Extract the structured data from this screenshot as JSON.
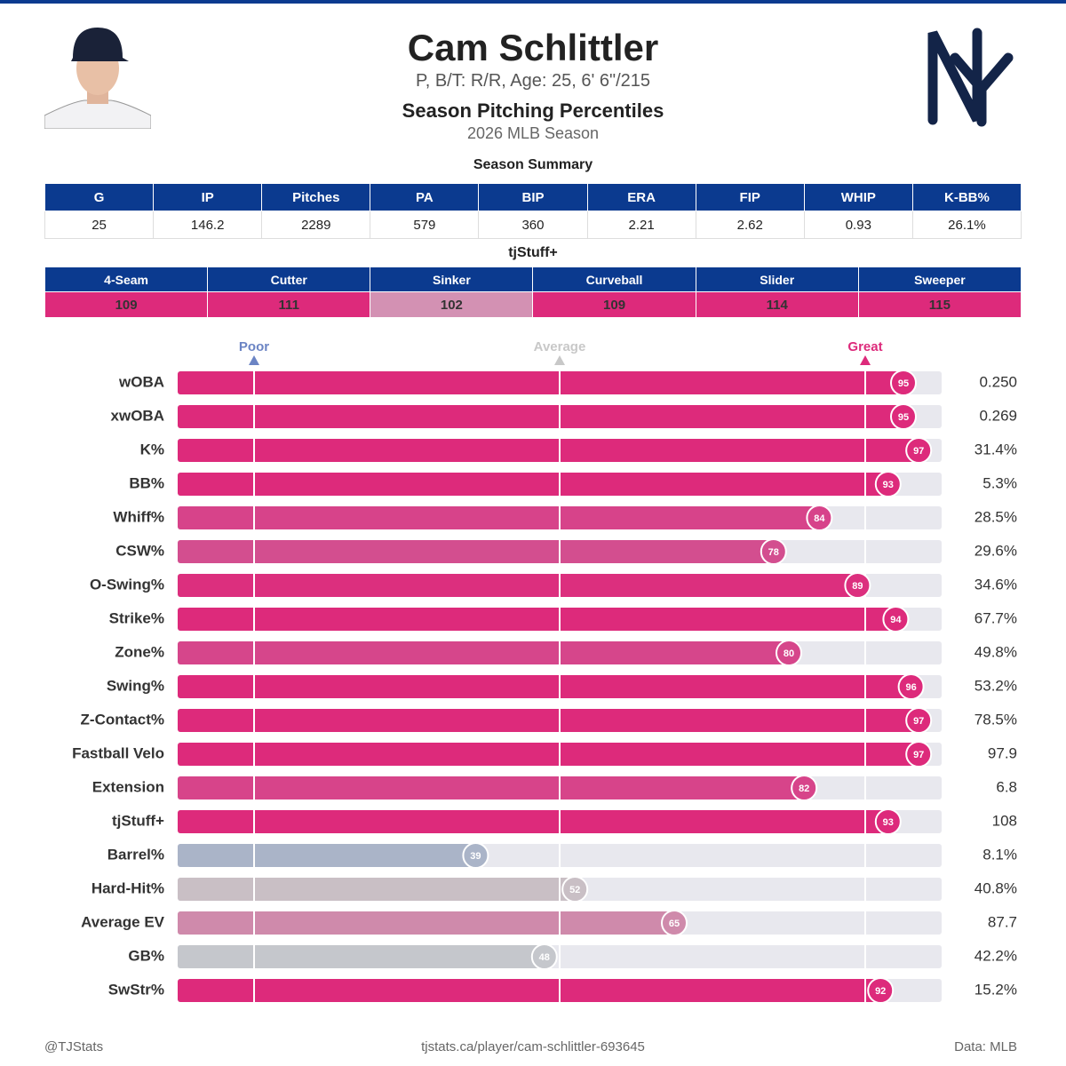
{
  "header": {
    "name": "Cam Schlittler",
    "bio": "P, B/T: R/R, Age: 25, 6' 6\"/215",
    "title": "Season Pitching Percentiles",
    "subtitle": "2026 MLB Season"
  },
  "summary": {
    "title": "Season Summary",
    "columns": [
      "G",
      "IP",
      "Pitches",
      "PA",
      "BIP",
      "ERA",
      "FIP",
      "WHIP",
      "K-BB%"
    ],
    "rows": [
      [
        "25",
        "146.2",
        "2289",
        "579",
        "360",
        "2.21",
        "2.62",
        "0.93",
        "26.1%"
      ]
    ]
  },
  "stuff": {
    "title": "tjStuff+",
    "columns": [
      "4-Seam",
      "Cutter",
      "Sinker",
      "Curveball",
      "Slider",
      "Sweeper"
    ],
    "values": [
      109,
      111,
      102,
      109,
      114,
      115
    ],
    "colors": [
      "#dd2a7b",
      "#dd2a7b",
      "#d391b3",
      "#dd2a7b",
      "#dd2a7b",
      "#dd2a7b"
    ]
  },
  "chart_data": {
    "type": "bar",
    "orientation": "horizontal",
    "categories": [
      "wOBA",
      "xwOBA",
      "K%",
      "BB%",
      "Whiff%",
      "CSW%",
      "O-Swing%",
      "Strike%",
      "Zone%",
      "Swing%",
      "Z-Contact%",
      "Fastball Velo",
      "Extension",
      "tjStuff+",
      "Barrel%",
      "Hard-Hit%",
      "Average EV",
      "GB%",
      "SwStr%"
    ],
    "values": [
      95,
      95,
      97,
      93,
      84,
      78,
      89,
      94,
      80,
      96,
      97,
      97,
      82,
      93,
      39,
      52,
      65,
      48,
      92
    ],
    "colors": [
      "#dd2a7b",
      "#dd2a7b",
      "#dd2a7b",
      "#dd2a7b",
      "#d7438a",
      "#d34e8f",
      "#dc2f7e",
      "#dd2a7b",
      "#d6468b",
      "#dd2a7b",
      "#dd2a7b",
      "#dd2a7b",
      "#d7448a",
      "#dd2a7b",
      "#aab4c8",
      "#c9bfc5",
      "#cf8aab",
      "#c5c7cc",
      "#dd2a7b"
    ],
    "stats": [
      "0.250",
      "0.269",
      "31.4%",
      "5.3%",
      "28.5%",
      "29.6%",
      "34.6%",
      "67.7%",
      "49.8%",
      "53.2%",
      "78.5%",
      "97.9",
      "6.8",
      "108",
      "8.1%",
      "40.8%",
      "87.7",
      "42.2%",
      "15.2%"
    ],
    "xlim": [
      0,
      100
    ],
    "xticks": [
      {
        "value": 10,
        "label": "Poor"
      },
      {
        "value": 50,
        "label": "Average"
      },
      {
        "value": 90,
        "label": "Great"
      }
    ],
    "tick_colors": [
      "#6b84c4",
      "#c8c8c8",
      "#dd2a7b"
    ],
    "grid": true
  },
  "footer": {
    "left": "@TJStats",
    "center": "tjstats.ca/player/cam-schlittler-693645",
    "right": "Data: MLB"
  }
}
